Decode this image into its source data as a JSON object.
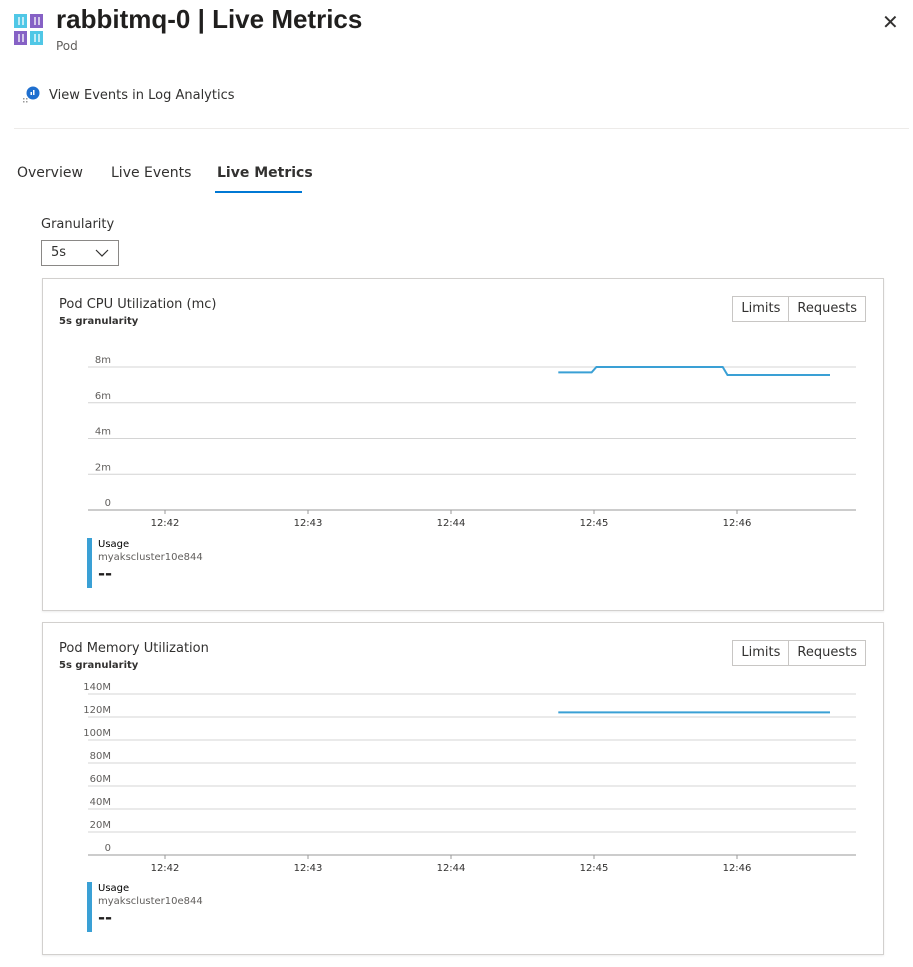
{
  "header": {
    "title": "rabbitmq-0 | Live Metrics",
    "subtitle": "Pod",
    "close_icon": "close-icon",
    "resource_icon": "pod-icon"
  },
  "toolbar": {
    "log_link": "View Events in Log Analytics"
  },
  "tabs": [
    {
      "label": "Overview"
    },
    {
      "label": "Live Events"
    },
    {
      "label": "Live Metrics",
      "active": true
    }
  ],
  "granularity": {
    "label": "Granularity",
    "value": "5s"
  },
  "colors": {
    "series": "#3aa0d5",
    "accent": "#0078d4"
  },
  "cards": [
    {
      "title": "Pod CPU Utilization (mc)",
      "subtitle": "5s granularity",
      "limits": "Limits",
      "requests": "Requests",
      "legend": {
        "name": "Usage",
        "cluster": "myakscluster10e844",
        "value": "--"
      }
    },
    {
      "title": "Pod Memory Utilization",
      "subtitle": "5s granularity",
      "limits": "Limits",
      "requests": "Requests",
      "legend": {
        "name": "Usage",
        "cluster": "myakscluster10e844",
        "value": "--"
      }
    }
  ],
  "chart_data": [
    {
      "type": "line",
      "title": "Pod CPU Utilization (mc)",
      "ylim": [
        0,
        8
      ],
      "yticks": [
        "0",
        "2m",
        "4m",
        "6m",
        "8m"
      ],
      "ytick_values": [
        0,
        2,
        4,
        6,
        8
      ],
      "xticks": [
        "12:42",
        "12:43",
        "12:44",
        "12:45",
        "12:46"
      ],
      "grid": true,
      "series": [
        {
          "name": "Usage",
          "x": [
            "12:44:45",
            "12:44:59",
            "12:45:01",
            "12:45:54",
            "12:45:56",
            "12:46:39"
          ],
          "y": [
            7.7,
            7.7,
            8.0,
            8.0,
            7.55,
            7.55
          ]
        }
      ]
    },
    {
      "type": "line",
      "title": "Pod Memory Utilization",
      "ylim": [
        0,
        140
      ],
      "yticks": [
        "0",
        "20M",
        "40M",
        "60M",
        "80M",
        "100M",
        "120M",
        "140M"
      ],
      "ytick_values": [
        0,
        20,
        40,
        60,
        80,
        100,
        120,
        140
      ],
      "xticks": [
        "12:42",
        "12:43",
        "12:44",
        "12:45",
        "12:46"
      ],
      "grid": true,
      "series": [
        {
          "name": "Usage",
          "x": [
            "12:44:45",
            "12:46:39"
          ],
          "y": [
            124,
            124
          ]
        }
      ]
    }
  ]
}
